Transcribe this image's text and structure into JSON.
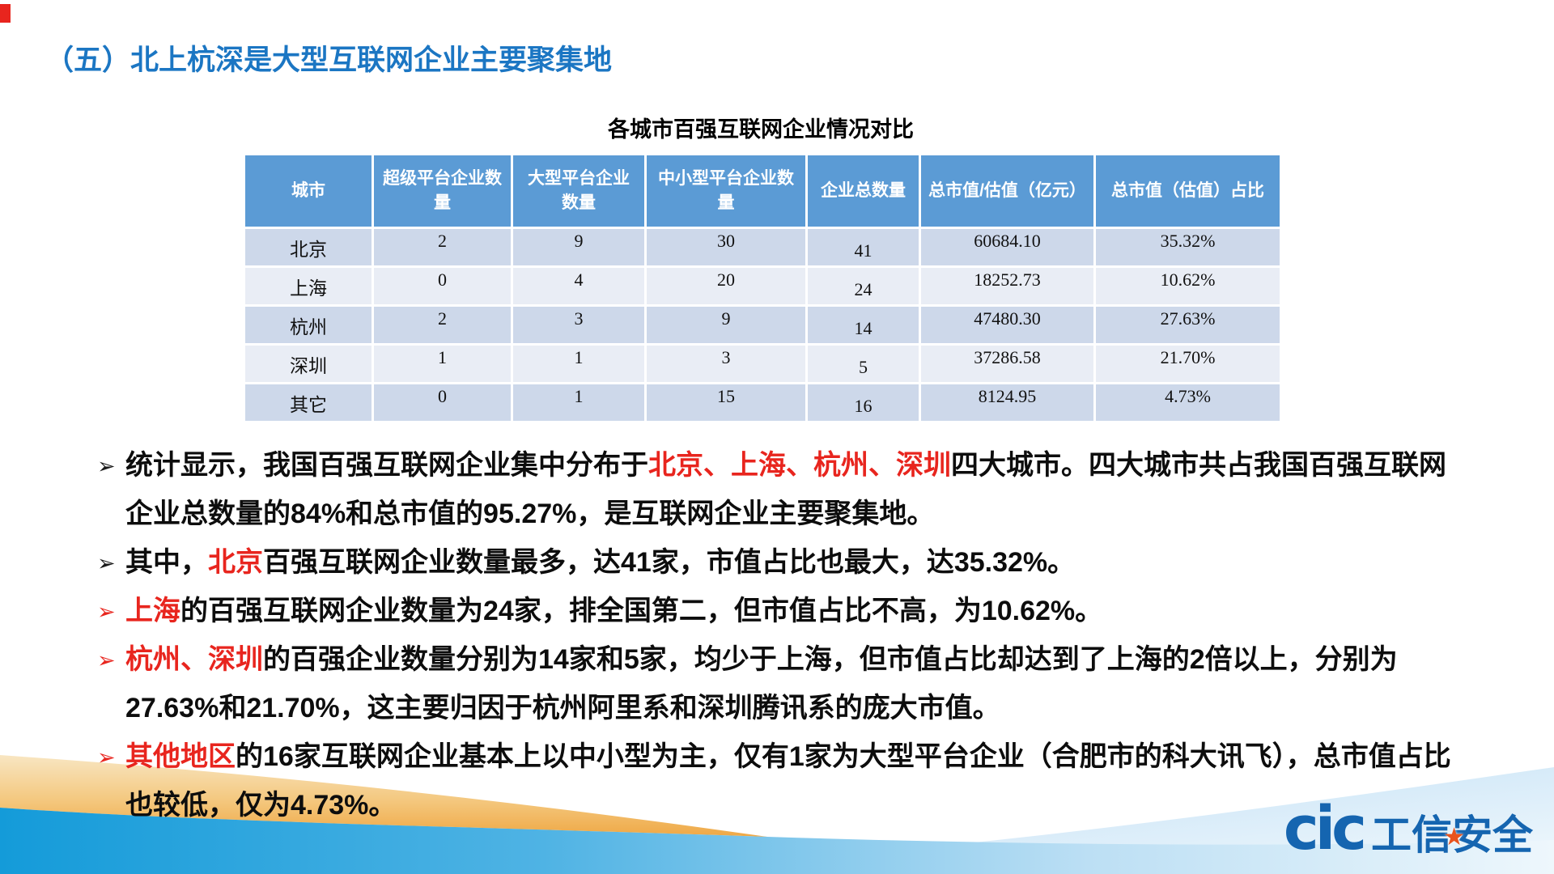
{
  "title": "（五）北上杭深是大型互联网企业主要聚集地",
  "table": {
    "caption": "各城市百强互联网企业情况对比",
    "columns": [
      "城市",
      "超级平台企业数\n量",
      "大型平台企业\n数量",
      "中小型平台企业数\n量",
      "企业总数量",
      "总市值/估值（亿元）",
      "总市值（估值）占比"
    ],
    "rows": [
      {
        "cells": [
          "北京",
          "2",
          "9",
          "30",
          "41",
          "60684.10",
          "35.32%"
        ]
      },
      {
        "cells": [
          "上海",
          "0",
          "4",
          "20",
          "24",
          "18252.73",
          "10.62%"
        ]
      },
      {
        "cells": [
          "杭州",
          "2",
          "3",
          "9",
          "14",
          "47480.30",
          "27.63%"
        ]
      },
      {
        "cells": [
          "深圳",
          "1",
          "1",
          "3",
          "5",
          "37286.58",
          "21.70%"
        ]
      },
      {
        "cells": [
          "其它",
          "0",
          "1",
          "15",
          "16",
          "8124.95",
          "4.73%"
        ]
      }
    ]
  },
  "bullet_marker": "➢",
  "bullets": [
    {
      "marker_color": "black",
      "segments": [
        {
          "color": "black",
          "text": "统计显示，我国百强互联网企业集中分布于"
        },
        {
          "color": "red",
          "text": "北京、上海、杭州、深圳"
        },
        {
          "color": "black",
          "text": "四大城市。四大城市共占我国百强互联网企业总数量的84%和总市值的95.27%，是互联网企业主要聚集地。"
        }
      ]
    },
    {
      "marker_color": "black",
      "segments": [
        {
          "color": "black",
          "text": "其中，"
        },
        {
          "color": "red",
          "text": "北京"
        },
        {
          "color": "black",
          "text": "百强互联网企业数量最多，达41家，市值占比也最大，达35.32%。"
        }
      ]
    },
    {
      "marker_color": "red",
      "segments": [
        {
          "color": "red",
          "text": "上海"
        },
        {
          "color": "black",
          "text": "的百强互联网企业数量为24家，排全国第二，但市值占比不高，为10.62%。"
        }
      ]
    },
    {
      "marker_color": "red",
      "segments": [
        {
          "color": "red",
          "text": "杭州、深圳"
        },
        {
          "color": "black",
          "text": "的百强企业数量分别为14家和5家，均少于上海，但市值占比却达到了上海的2倍以上，分别为27.63%和21.70%，这主要归因于杭州阿里系和深圳腾讯系的庞大市值。"
        }
      ]
    },
    {
      "marker_color": "red",
      "segments": [
        {
          "color": "red",
          "text": "其他地区"
        },
        {
          "color": "black",
          "text": "的16家互联网企业基本上以中小型为主，仅有1家为大型平台企业（合肥市的科大讯飞），总市值占比也较低，仅为4.73%。"
        }
      ]
    }
  ],
  "logo": {
    "cic": "cic",
    "star": "★",
    "text": "工信安全"
  },
  "colors": {
    "title_blue": "#1b76c3",
    "table_header_blue": "#5b9bd5",
    "row_odd": "#cdd8ea",
    "row_even": "#e9edf5",
    "highlight_red": "#e8251e",
    "logo_blue": "#1565b0",
    "logo_star_orange": "#e8541e",
    "wave_blue": "#149bd9",
    "wave_orange": "#efa845"
  }
}
